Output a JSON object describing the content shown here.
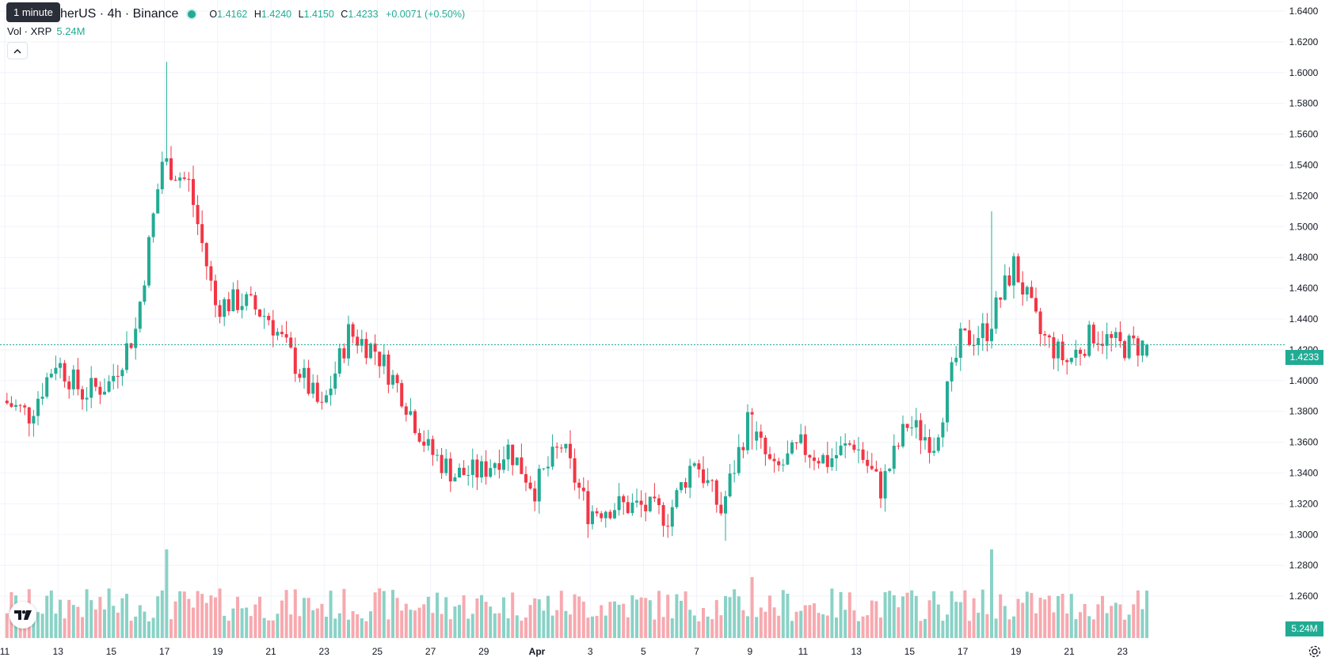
{
  "tooltip": "1 minute",
  "legend": {
    "symbol": "XRP / TetherUS · 4h · Binance",
    "open_key": "O",
    "open": "1.4162",
    "high_key": "H",
    "high": "1.4240",
    "low_key": "L",
    "low": "1.4150",
    "close_key": "C",
    "close": "1.4233",
    "change": "+0.0071 (+0.50%)"
  },
  "volume_legend": {
    "label": "Vol · XRP",
    "value": "5.24M"
  },
  "badges": {
    "last_price": "1.4233",
    "last_volume": "5.24M"
  },
  "colors": {
    "up": "#22ab94",
    "down": "#f23645",
    "up_vol": "#8ad2c6",
    "down_vol": "#f7a9af",
    "grid": "#f0f3fa",
    "text": "#131722"
  },
  "chart_data": {
    "type": "candlestick",
    "interval": "4h",
    "exchange": "Binance",
    "y_axis": {
      "ticks": [
        "1.6400",
        "1.6200",
        "1.6000",
        "1.5800",
        "1.5600",
        "1.5400",
        "1.5200",
        "1.5000",
        "1.4800",
        "1.4600",
        "1.4400",
        "1.4200",
        "1.4000",
        "1.3800",
        "1.3600",
        "1.3400",
        "1.3200",
        "1.3000",
        "1.2800",
        "1.2600"
      ],
      "range": [
        1.25,
        1.645
      ]
    },
    "x_axis": {
      "ticks": [
        "11",
        "13",
        "15",
        "17",
        "19",
        "21",
        "23",
        "25",
        "27",
        "29",
        "Apr",
        "3",
        "5",
        "7",
        "9",
        "11",
        "13",
        "15",
        "17",
        "19",
        "21",
        "23"
      ]
    },
    "last_price": 1.4233,
    "anchors": [
      {
        "t": "Mar 11",
        "price": 1.387
      },
      {
        "t": "Mar 12",
        "price": 1.378
      },
      {
        "t": "Mar 13",
        "price": 1.413
      },
      {
        "t": "Mar 14",
        "price": 1.392
      },
      {
        "t": "Mar 15",
        "price": 1.398
      },
      {
        "t": "Mar 16",
        "price": 1.433
      },
      {
        "t": "Mar 17",
        "price": 1.543
      },
      {
        "t": "Mar 18",
        "price": 1.528
      },
      {
        "t": "Mar 19",
        "price": 1.449
      },
      {
        "t": "Mar 20",
        "price": 1.452
      },
      {
        "t": "Mar 21",
        "price": 1.441
      },
      {
        "t": "Mar 22",
        "price": 1.411
      },
      {
        "t": "Mar 23",
        "price": 1.38
      },
      {
        "t": "Mar 24",
        "price": 1.431
      },
      {
        "t": "Mar 25",
        "price": 1.42
      },
      {
        "t": "Mar 26",
        "price": 1.392
      },
      {
        "t": "Mar 27",
        "price": 1.355
      },
      {
        "t": "Mar 28",
        "price": 1.339
      },
      {
        "t": "Mar 29",
        "price": 1.341
      },
      {
        "t": "Mar 30",
        "price": 1.356
      },
      {
        "t": "Mar 31",
        "price": 1.33
      },
      {
        "t": "Apr 1",
        "price": 1.358
      },
      {
        "t": "Apr 2",
        "price": 1.315
      },
      {
        "t": "Apr 3",
        "price": 1.319
      },
      {
        "t": "Apr 4",
        "price": 1.318
      },
      {
        "t": "Apr 5",
        "price": 1.312
      },
      {
        "t": "Apr 6",
        "price": 1.35
      },
      {
        "t": "Apr 7",
        "price": 1.315
      },
      {
        "t": "Apr 8",
        "price": 1.373
      },
      {
        "t": "Apr 9",
        "price": 1.34
      },
      {
        "t": "Apr 10",
        "price": 1.357
      },
      {
        "t": "Apr 11",
        "price": 1.348
      },
      {
        "t": "Apr 12",
        "price": 1.36
      },
      {
        "t": "Apr 13",
        "price": 1.33
      },
      {
        "t": "Apr 14",
        "price": 1.372
      },
      {
        "t": "Apr 15",
        "price": 1.36
      },
      {
        "t": "Apr 16",
        "price": 1.425
      },
      {
        "t": "Apr 17",
        "price": 1.433
      },
      {
        "t": "Apr 18",
        "price": 1.475
      },
      {
        "t": "Apr 19",
        "price": 1.43
      },
      {
        "t": "Apr 20",
        "price": 1.412
      },
      {
        "t": "Apr 21",
        "price": 1.431
      },
      {
        "t": "Apr 22",
        "price": 1.422
      },
      {
        "t": "Apr 23",
        "price": 1.4233
      }
    ],
    "highlights": [
      {
        "t": "Mar 17",
        "high": 1.607,
        "note": "wick high"
      },
      {
        "t": "Apr 17",
        "high": 1.51
      },
      {
        "t": "Apr 7",
        "low": 1.296
      },
      {
        "t": "Apr 8",
        "close": 1.378
      }
    ]
  }
}
